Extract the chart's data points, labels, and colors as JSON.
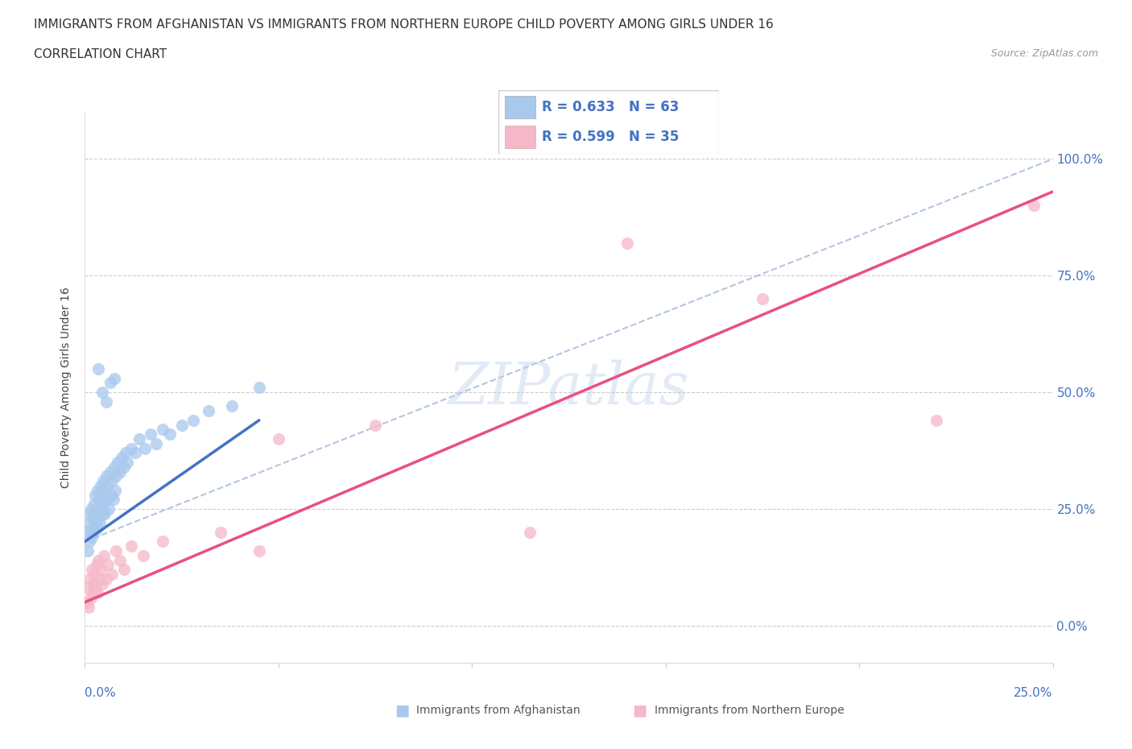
{
  "title": "IMMIGRANTS FROM AFGHANISTAN VS IMMIGRANTS FROM NORTHERN EUROPE CHILD POVERTY AMONG GIRLS UNDER 16",
  "subtitle": "CORRELATION CHART",
  "source": "Source: ZipAtlas.com",
  "ylabel": "Child Poverty Among Girls Under 16",
  "xlim": [
    0,
    25
  ],
  "ylim": [
    -8,
    110
  ],
  "blue_color": "#A8C8EE",
  "pink_color": "#F5B8C8",
  "blue_line_color": "#4472C4",
  "pink_line_color": "#E85080",
  "dashed_line_color": "#A0B8D8",
  "blue_line_x": [
    0,
    4.5
  ],
  "blue_line_y": [
    18.0,
    44.0
  ],
  "pink_line_x": [
    0,
    25
  ],
  "pink_line_y": [
    5.0,
    93.0
  ],
  "dashed_line_x": [
    0,
    25
  ],
  "dashed_line_y": [
    18.0,
    100.0
  ],
  "afg_x": [
    0.05,
    0.08,
    0.1,
    0.12,
    0.13,
    0.15,
    0.16,
    0.18,
    0.2,
    0.22,
    0.24,
    0.25,
    0.27,
    0.28,
    0.3,
    0.32,
    0.33,
    0.35,
    0.37,
    0.38,
    0.4,
    0.42,
    0.43,
    0.45,
    0.47,
    0.48,
    0.5,
    0.52,
    0.55,
    0.58,
    0.6,
    0.62,
    0.65,
    0.68,
    0.7,
    0.73,
    0.75,
    0.78,
    0.8,
    0.85,
    0.9,
    0.95,
    1.0,
    1.05,
    1.1,
    1.2,
    1.3,
    1.4,
    1.55,
    1.7,
    1.85,
    2.0,
    2.2,
    2.5,
    2.8,
    3.2,
    3.8,
    4.5,
    0.35,
    0.45,
    0.55,
    0.65,
    0.75
  ],
  "afg_y": [
    20,
    16,
    22,
    18,
    24,
    20,
    25,
    19,
    23,
    21,
    26,
    20,
    28,
    22,
    25,
    21,
    29,
    23,
    27,
    22,
    30,
    25,
    28,
    24,
    31,
    26,
    29,
    24,
    32,
    27,
    30,
    25,
    33,
    28,
    31,
    27,
    34,
    29,
    32,
    35,
    33,
    36,
    34,
    37,
    35,
    38,
    37,
    40,
    38,
    41,
    39,
    42,
    41,
    43,
    44,
    46,
    47,
    51,
    55,
    50,
    48,
    52,
    53
  ],
  "neu_x": [
    0.05,
    0.08,
    0.1,
    0.12,
    0.15,
    0.18,
    0.2,
    0.22,
    0.25,
    0.28,
    0.3,
    0.32,
    0.35,
    0.38,
    0.4,
    0.45,
    0.5,
    0.55,
    0.6,
    0.7,
    0.8,
    0.9,
    1.0,
    1.2,
    1.5,
    2.0,
    3.5,
    4.5,
    5.0,
    7.5,
    11.5,
    14.0,
    17.5,
    22.0,
    24.5
  ],
  "neu_y": [
    5,
    8,
    4,
    10,
    6,
    12,
    7,
    9,
    11,
    8,
    13,
    7,
    14,
    10,
    12,
    9,
    15,
    10,
    13,
    11,
    16,
    14,
    12,
    17,
    15,
    18,
    20,
    16,
    40,
    43,
    20,
    82,
    70,
    44,
    90
  ],
  "title_fontsize": 11,
  "source_fontsize": 9,
  "axis_label_fontsize": 10,
  "tick_fontsize": 11,
  "legend_fontsize": 12
}
